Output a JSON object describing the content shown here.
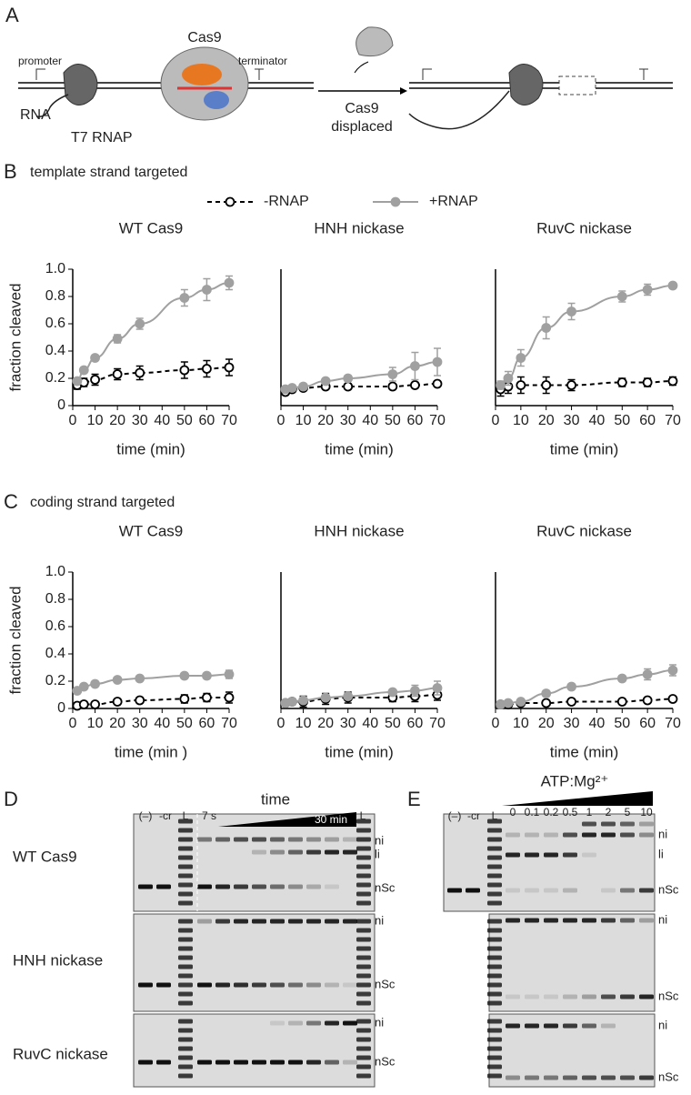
{
  "panel_labels": [
    "A",
    "B",
    "C",
    "D",
    "E"
  ],
  "diagram": {
    "promoter": "promoter",
    "terminator": "terminator",
    "cas9": "Cas9",
    "rna": "RNA",
    "rnap": "T7 RNAP",
    "displaced": [
      "Cas9",
      "displaced"
    ]
  },
  "section_titles": [
    "template strand targeted",
    "coding strand targeted"
  ],
  "chart_data": [
    {
      "type": "line",
      "title": "WT Cas9",
      "xlabel": "time (min)",
      "ylabel": "fraction cleaved",
      "x": [
        2,
        5,
        10,
        20,
        30,
        50,
        60,
        70
      ],
      "xlim": [
        0,
        70
      ],
      "xticks": [
        0,
        10,
        20,
        30,
        40,
        50,
        60,
        70
      ],
      "ylim": [
        0,
        1
      ],
      "yticks": [
        0,
        0.2,
        0.4,
        0.6,
        0.8,
        {
          "value": 1,
          "label": "1.0"
        }
      ],
      "series": [
        {
          "name": "-RNAP",
          "color": "#000000",
          "linestyle": "dashed",
          "marker": "open",
          "values": [
            0.15,
            0.17,
            0.19,
            0.23,
            0.24,
            0.26,
            0.27,
            0.28
          ],
          "errors": [
            0.03,
            0.03,
            0.04,
            0.04,
            0.05,
            0.06,
            0.06,
            0.06
          ]
        },
        {
          "name": "+RNAP",
          "color": "#a0a0a0",
          "linestyle": "solid",
          "marker": "filled",
          "values": [
            0.18,
            0.26,
            0.35,
            0.49,
            0.6,
            0.79,
            0.85,
            0.9
          ],
          "errors": [
            0.02,
            0.02,
            0.02,
            0.03,
            0.04,
            0.06,
            0.08,
            0.05
          ]
        }
      ]
    },
    {
      "type": "line",
      "title": "HNH nickase",
      "xlabel": "time (min)",
      "x": [
        2,
        5,
        10,
        20,
        30,
        50,
        60,
        70
      ],
      "xlim": [
        0,
        70
      ],
      "xticks": [
        0,
        10,
        20,
        30,
        40,
        50,
        60,
        70
      ],
      "ylim": [
        0,
        1
      ],
      "series": [
        {
          "color": "#000000",
          "linestyle": "dashed",
          "marker": "open",
          "values": [
            0.1,
            0.12,
            0.13,
            0.14,
            0.14,
            0.14,
            0.15,
            0.16
          ],
          "errors": [
            0.02,
            0.02,
            0.02,
            0.02,
            0.02,
            0.02,
            0.02,
            0.02
          ]
        },
        {
          "color": "#a0a0a0",
          "linestyle": "solid",
          "marker": "filled",
          "values": [
            0.12,
            0.13,
            0.14,
            0.18,
            0.2,
            0.23,
            0.29,
            0.32
          ],
          "errors": [
            0.02,
            0.02,
            0.02,
            0.02,
            0.02,
            0.05,
            0.1,
            0.1
          ]
        }
      ]
    },
    {
      "type": "line",
      "title": "RuvC nickase",
      "xlabel": "time (min)",
      "x": [
        2,
        5,
        10,
        20,
        30,
        50,
        60,
        70
      ],
      "xlim": [
        0,
        70
      ],
      "xticks": [
        0,
        10,
        20,
        30,
        40,
        50,
        60,
        70
      ],
      "ylim": [
        0,
        1
      ],
      "series": [
        {
          "color": "#000000",
          "linestyle": "dashed",
          "marker": "open",
          "values": [
            0.12,
            0.14,
            0.15,
            0.15,
            0.15,
            0.17,
            0.17,
            0.18
          ],
          "errors": [
            0.05,
            0.05,
            0.06,
            0.06,
            0.04,
            0.03,
            0.03,
            0.03
          ]
        },
        {
          "color": "#a0a0a0",
          "linestyle": "solid",
          "marker": "filled",
          "values": [
            0.15,
            0.2,
            0.35,
            0.57,
            0.69,
            0.8,
            0.85,
            0.88
          ],
          "errors": [
            0.03,
            0.05,
            0.06,
            0.08,
            0.06,
            0.04,
            0.04,
            0.02
          ]
        }
      ]
    },
    {
      "type": "line",
      "title": "WT Cas9",
      "xlabel": "time (min )",
      "ylabel": "fraction cleaved",
      "x": [
        2,
        5,
        10,
        20,
        30,
        50,
        60,
        70
      ],
      "xlim": [
        0,
        70
      ],
      "xticks": [
        0,
        10,
        20,
        30,
        40,
        50,
        60,
        70
      ],
      "ylim": [
        0,
        1
      ],
      "yticks": [
        0,
        0.2,
        0.4,
        0.6,
        0.8,
        {
          "value": 1,
          "label": "1.0"
        }
      ],
      "series": [
        {
          "color": "#000000",
          "linestyle": "dashed",
          "marker": "open",
          "values": [
            0.02,
            0.03,
            0.03,
            0.05,
            0.06,
            0.07,
            0.08,
            0.08
          ],
          "errors": [
            0.01,
            0.01,
            0.01,
            0.01,
            0.02,
            0.03,
            0.03,
            0.04
          ]
        },
        {
          "color": "#a0a0a0",
          "linestyle": "solid",
          "marker": "filled",
          "values": [
            0.13,
            0.16,
            0.18,
            0.21,
            0.22,
            0.24,
            0.24,
            0.25
          ],
          "errors": [
            0.01,
            0.01,
            0.01,
            0.01,
            0.01,
            0.02,
            0.02,
            0.03
          ]
        }
      ]
    },
    {
      "type": "line",
      "title": "HNH nickase",
      "xlabel": "time (min)",
      "x": [
        2,
        5,
        10,
        20,
        30,
        50,
        60,
        70
      ],
      "xlim": [
        0,
        70
      ],
      "xticks": [
        0,
        10,
        20,
        30,
        40,
        50,
        60,
        70
      ],
      "ylim": [
        0,
        1
      ],
      "series": [
        {
          "color": "#000000",
          "linestyle": "dashed",
          "marker": "open",
          "values": [
            0.04,
            0.05,
            0.05,
            0.07,
            0.08,
            0.08,
            0.09,
            0.1
          ],
          "errors": [
            0.01,
            0.02,
            0.04,
            0.04,
            0.04,
            0.03,
            0.04,
            0.04
          ]
        },
        {
          "color": "#a0a0a0",
          "linestyle": "solid",
          "marker": "filled",
          "values": [
            0.04,
            0.05,
            0.06,
            0.08,
            0.09,
            0.12,
            0.13,
            0.15
          ],
          "errors": [
            0.01,
            0.01,
            0.02,
            0.02,
            0.02,
            0.02,
            0.04,
            0.05
          ]
        }
      ]
    },
    {
      "type": "line",
      "title": "RuvC nickase",
      "xlabel": "time (min)",
      "x": [
        2,
        5,
        10,
        20,
        30,
        50,
        60,
        70
      ],
      "xlim": [
        0,
        70
      ],
      "xticks": [
        0,
        10,
        20,
        30,
        40,
        50,
        60,
        70
      ],
      "ylim": [
        0,
        1
      ],
      "series": [
        {
          "color": "#000000",
          "linestyle": "dashed",
          "marker": "open",
          "values": [
            0.03,
            0.03,
            0.04,
            0.04,
            0.05,
            0.05,
            0.06,
            0.07
          ],
          "errors": [
            0.01,
            0.01,
            0.01,
            0.01,
            0.01,
            0.01,
            0.01,
            0.01
          ]
        },
        {
          "color": "#a0a0a0",
          "linestyle": "solid",
          "marker": "filled",
          "values": [
            0.03,
            0.04,
            0.05,
            0.11,
            0.16,
            0.22,
            0.25,
            0.28
          ],
          "errors": [
            0.01,
            0.01,
            0.01,
            0.02,
            0.02,
            0.02,
            0.04,
            0.04
          ]
        }
      ]
    }
  ],
  "gel_d": {
    "axis_label": "time",
    "start": "7 s",
    "end": "30 min",
    "lanes": [
      "(–)",
      "-cr",
      "L",
      "L"
    ],
    "rows": [
      {
        "name": "WT Cas9",
        "bands": [
          "ni",
          "li",
          "nSc"
        ]
      },
      {
        "name": "HNH nickase",
        "bands": [
          "ni",
          "nSc"
        ]
      },
      {
        "name": "RuvC nickase",
        "bands": [
          "ni",
          "nSc"
        ]
      }
    ]
  },
  "gel_e": {
    "axis_label": "ATP:Mg²⁺",
    "lanes": [
      "(–)",
      "-cr",
      "L"
    ],
    "conc": [
      "0",
      "0.1",
      "0.2",
      "0.5",
      "1",
      "2",
      "5",
      "10"
    ],
    "bands": [
      [
        "ni",
        "li",
        "nSc"
      ],
      [
        "ni",
        "nSc"
      ],
      [
        "ni",
        "nSc"
      ]
    ]
  }
}
